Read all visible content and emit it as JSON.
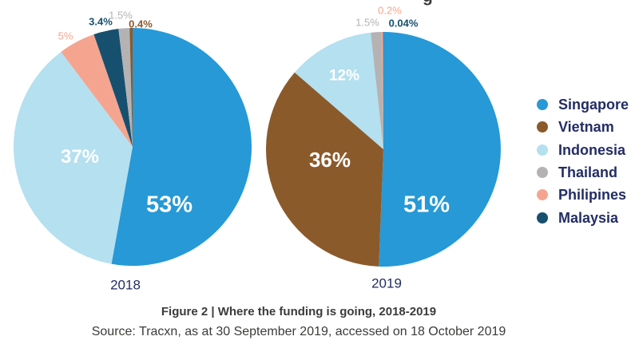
{
  "figure": {
    "cropped_title_fragment": "g",
    "caption": "Figure 2 | Where the funding is going, 2018-2019",
    "source": "Source: Tracxn, as at 30 September 2019, accessed on 18 October 2019"
  },
  "colors": {
    "singapore": "#2699d6",
    "vietnam": "#8b5a2b",
    "indonesia": "#b4e0f0",
    "thailand": "#b5b2b3",
    "philipines": "#f5a58f",
    "malaysia": "#17506f",
    "legend_text": "#232d64",
    "caption_text": "#3b3b3a"
  },
  "legend": {
    "items": [
      {
        "label": "Singapore",
        "color": "singapore"
      },
      {
        "label": "Vietnam",
        "color": "vietnam"
      },
      {
        "label": "Indonesia",
        "color": "indonesia"
      },
      {
        "label": "Thailand",
        "color": "thailand"
      },
      {
        "label": "Philipines",
        "color": "philipines"
      },
      {
        "label": "Malaysia",
        "color": "malaysia"
      }
    ]
  },
  "chart_data": [
    {
      "type": "pie",
      "title": "2018",
      "unit": "%",
      "start_angle_deg": 0,
      "direction": "clockwise",
      "slices": [
        {
          "name": "Singapore",
          "value": 53,
          "label": "53%",
          "color": "singapore"
        },
        {
          "name": "Indonesia",
          "value": 37,
          "label": "37%",
          "color": "indonesia"
        },
        {
          "name": "Philipines",
          "value": 5,
          "label": "5%",
          "color": "philipines"
        },
        {
          "name": "Malaysia",
          "value": 3.4,
          "label": "3.4%",
          "color": "malaysia"
        },
        {
          "name": "Thailand",
          "value": 1.5,
          "label": "1.5%",
          "color": "thailand"
        },
        {
          "name": "Vietnam",
          "value": 0.4,
          "label": "0.4%",
          "color": "vietnam"
        }
      ]
    },
    {
      "type": "pie",
      "title": "2019",
      "unit": "%",
      "start_angle_deg": 0,
      "direction": "clockwise",
      "slices": [
        {
          "name": "Singapore",
          "value": 51,
          "label": "51%",
          "color": "singapore"
        },
        {
          "name": "Vietnam",
          "value": 36,
          "label": "36%",
          "color": "vietnam"
        },
        {
          "name": "Indonesia",
          "value": 12,
          "label": "12%",
          "color": "indonesia"
        },
        {
          "name": "Thailand",
          "value": 1.5,
          "label": "1.5%",
          "color": "thailand"
        },
        {
          "name": "Philipines",
          "value": 0.2,
          "label": "0.2%",
          "color": "philipines"
        },
        {
          "name": "Malaysia",
          "value": 0.04,
          "label": "0.04%",
          "color": "malaysia"
        }
      ]
    }
  ]
}
